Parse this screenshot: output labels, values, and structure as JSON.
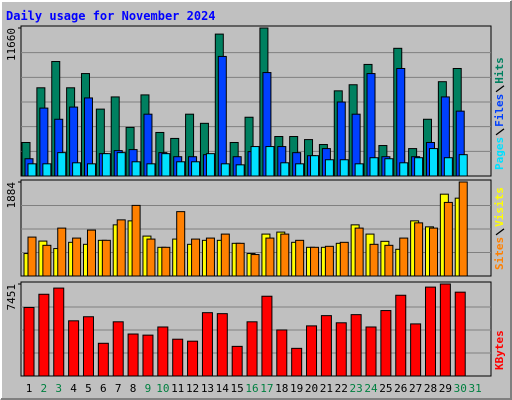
{
  "title": "Daily usage for November 2024",
  "chart_data": [
    {
      "type": "bar",
      "ylim": [
        0,
        11660
      ],
      "yticks": [
        11660
      ],
      "series": [
        {
          "name": "Hits",
          "color": "#008060",
          "values": [
            2640,
            6950,
            9020,
            6950,
            8070,
            5270,
            6230,
            3830,
            6390,
            3430,
            2960,
            4870,
            4150,
            11180,
            2640,
            4630,
            11660,
            3110,
            3110,
            2870,
            2480,
            6710,
            7190,
            8790,
            2400,
            10060,
            2160,
            4470,
            7430,
            8470,
            null
          ]
        },
        {
          "name": "Files",
          "color": "#0040ff",
          "values": [
            1360,
            5350,
            4470,
            5430,
            6150,
            1760,
            2000,
            2080,
            4870,
            1840,
            1520,
            1520,
            1680,
            9420,
            1520,
            1920,
            8150,
            2320,
            1840,
            1600,
            2160,
            5830,
            4870,
            8070,
            1520,
            8470,
            1520,
            2640,
            6230,
            5110,
            null
          ]
        },
        {
          "name": "Pages",
          "color": "#00e0ff",
          "values": [
            960,
            960,
            1840,
            1040,
            960,
            1760,
            1840,
            1120,
            960,
            1760,
            1120,
            1120,
            1760,
            960,
            880,
            2320,
            2320,
            1040,
            960,
            1600,
            1280,
            1280,
            960,
            1440,
            1360,
            1040,
            1440,
            2160,
            1440,
            1680,
            null
          ]
        }
      ]
    },
    {
      "type": "bar",
      "ylim": [
        0,
        1884
      ],
      "yticks": [
        1884
      ],
      "series": [
        {
          "name": "Visits",
          "color": "#ffff00",
          "values": [
            450,
            700,
            550,
            675,
            635,
            715,
            1025,
            1105,
            800,
            575,
            740,
            635,
            715,
            715,
            655,
            450,
            840,
            880,
            675,
            575,
            575,
            655,
            1025,
            840,
            695,
            535,
            1105,
            985,
            1640,
            1560,
            null
          ]
        },
        {
          "name": "Sites",
          "color": "#ff8000",
          "values": [
            780,
            615,
            960,
            760,
            920,
            715,
            1125,
            1415,
            740,
            575,
            1290,
            740,
            760,
            840,
            655,
            430,
            760,
            840,
            715,
            575,
            595,
            675,
            960,
            635,
            615,
            760,
            1065,
            960,
            1475,
            1884,
            null
          ]
        }
      ]
    },
    {
      "type": "bar",
      "ylim": [
        0,
        7451
      ],
      "yticks": [
        7451
      ],
      "categories": [
        "1",
        "2",
        "3",
        "4",
        "5",
        "6",
        "7",
        "8",
        "9",
        "10",
        "11",
        "12",
        "13",
        "14",
        "15",
        "16",
        "17",
        "18",
        "19",
        "20",
        "21",
        "22",
        "23",
        "24",
        "25",
        "26",
        "27",
        "28",
        "29",
        "30",
        "31"
      ],
      "category_colors": [
        "#000000",
        "#008040",
        "#008040",
        "#000000",
        "#000000",
        "#000000",
        "#000000",
        "#000000",
        "#008040",
        "#008040",
        "#000000",
        "#000000",
        "#000000",
        "#000000",
        "#000000",
        "#008040",
        "#008040",
        "#000000",
        "#000000",
        "#000000",
        "#000000",
        "#000000",
        "#008040",
        "#008040",
        "#000000",
        "#000000",
        "#000000",
        "#000000",
        "#000000",
        "#008040",
        "#008040"
      ],
      "series": [
        {
          "name": "KBytes",
          "color": "#ff0000",
          "values": [
            5550,
            6620,
            7120,
            4470,
            4800,
            2650,
            4390,
            3400,
            3310,
            3970,
            2980,
            2820,
            5130,
            5050,
            2400,
            4390,
            6460,
            3730,
            2240,
            4060,
            4890,
            4310,
            4970,
            3970,
            5300,
            6540,
            4220,
            7200,
            7451,
            6790,
            null
          ]
        }
      ]
    }
  ]
}
